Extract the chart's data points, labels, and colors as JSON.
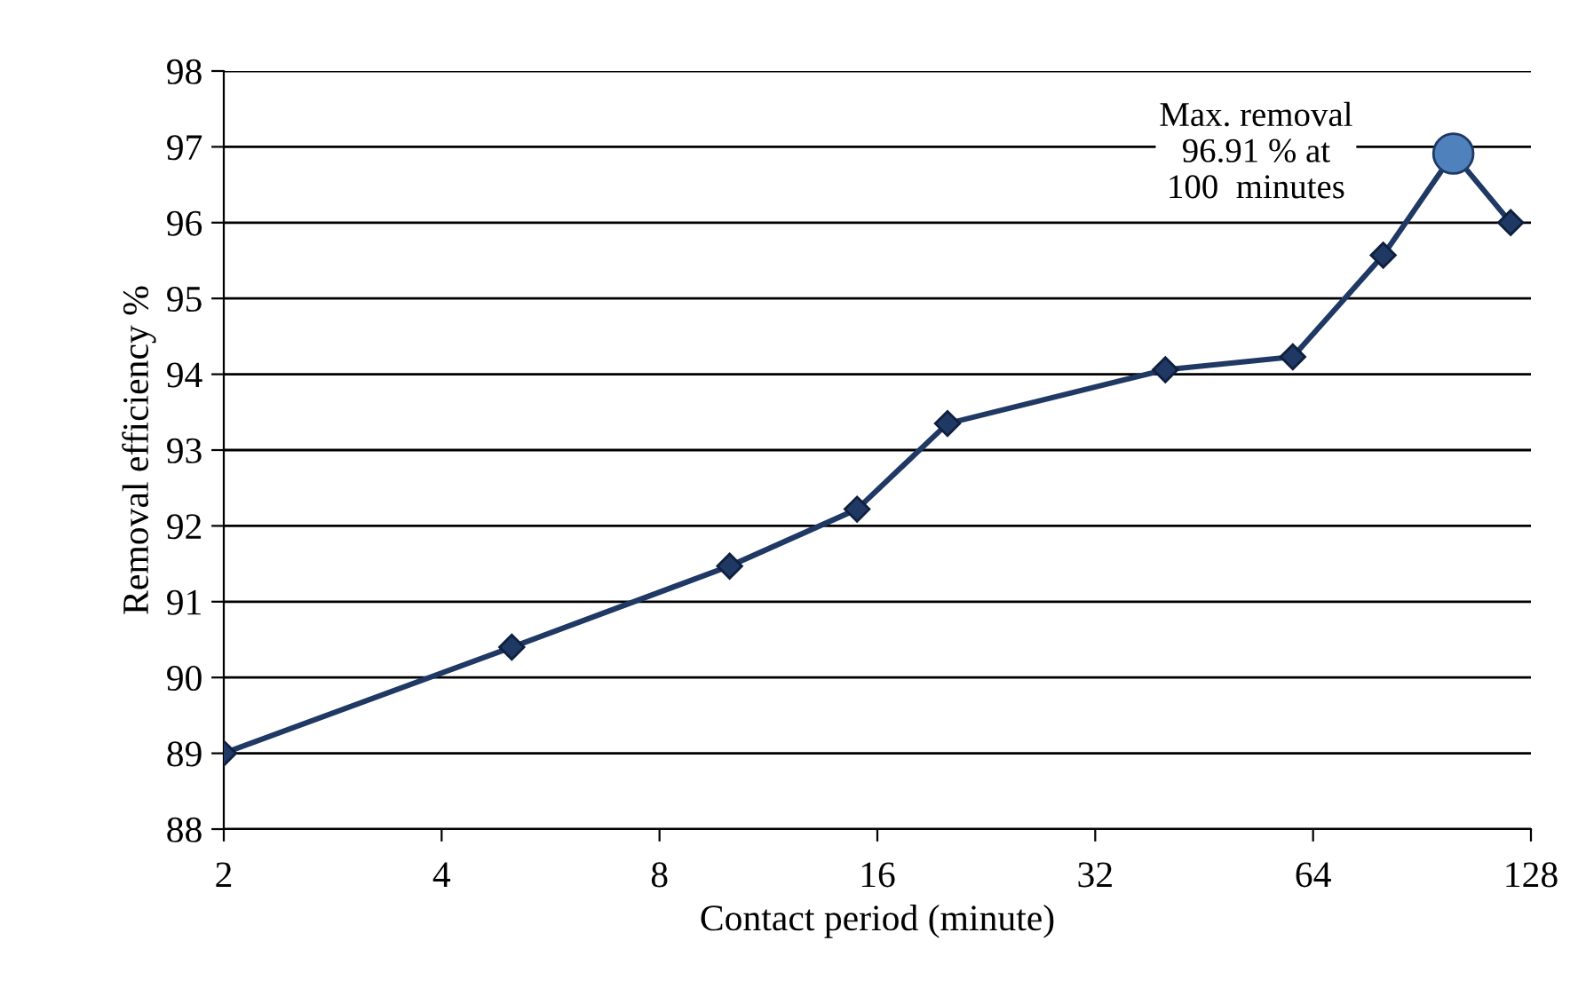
{
  "chart_data": {
    "type": "line",
    "xlabel": "Contact period (minute)",
    "ylabel": "Removal efficiency %",
    "log": "x",
    "xlim": [
      2,
      128
    ],
    "xticks": [
      2,
      4,
      8,
      16,
      32,
      64,
      128
    ],
    "ylim": [
      88,
      98
    ],
    "yticks": [
      88,
      89,
      90,
      91,
      92,
      93,
      94,
      95,
      96,
      97,
      98
    ],
    "grid": "y",
    "legend": false,
    "marker": "diamond",
    "line_style": "solid",
    "series": [
      {
        "color": "#1f3864",
        "x": [
          2,
          5,
          10,
          15,
          20,
          40,
          60,
          80,
          100,
          120
        ],
        "values": [
          89.0,
          90.4,
          91.47,
          92.22,
          93.35,
          94.06,
          94.23,
          95.57,
          96.91,
          96.0
        ]
      },
      {
        "type": "scatter",
        "color": "#4f81bd",
        "marker": "circle",
        "x": [
          100
        ],
        "values": [
          96.91
        ]
      }
    ],
    "annotations": [
      {
        "text": "Max. removal\n96.91 % at\n100  minutes",
        "x": 100,
        "y": 96.91
      }
    ]
  }
}
